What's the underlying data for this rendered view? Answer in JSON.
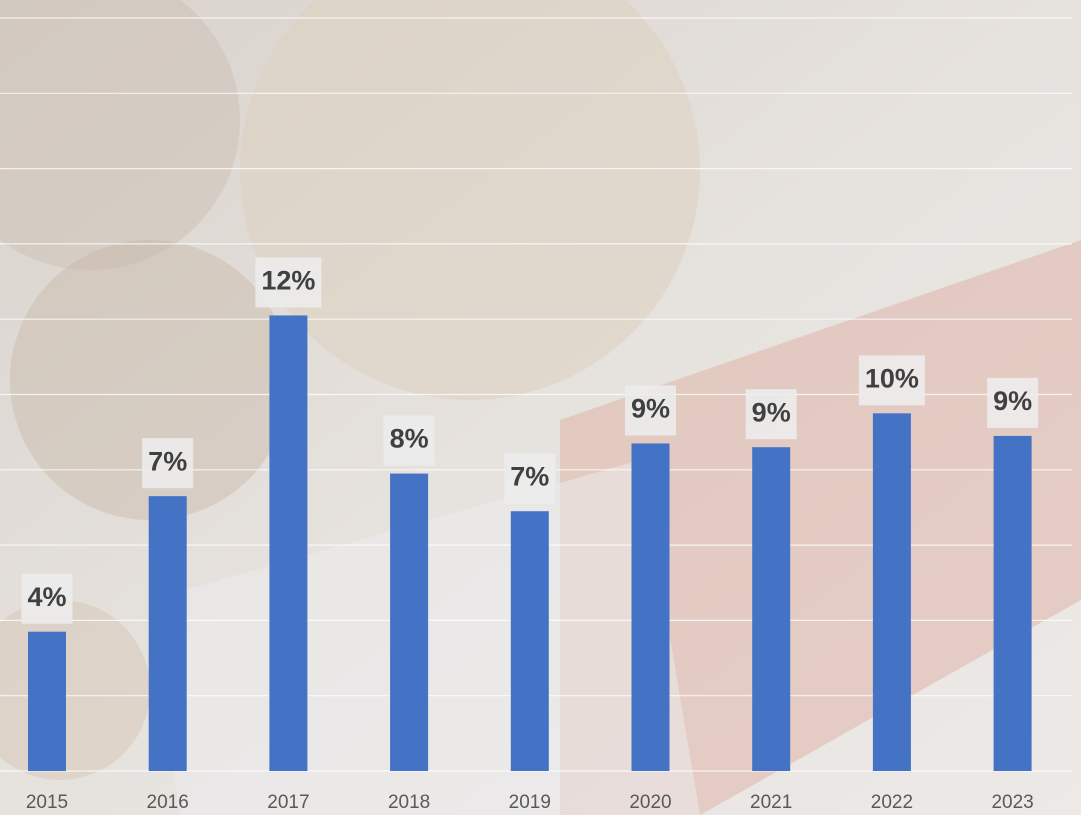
{
  "chart_data": {
    "type": "bar",
    "categories": [
      "2015",
      "2016",
      "2017",
      "2018",
      "2019",
      "2020",
      "2021",
      "2022",
      "2023"
    ],
    "values": [
      3.7,
      7.3,
      12.1,
      7.9,
      6.9,
      8.7,
      8.6,
      9.5,
      8.9
    ],
    "value_labels": [
      "4%",
      "7%",
      "12%",
      "8%",
      "7%",
      "9%",
      "9%",
      "10%",
      "9%"
    ],
    "color": "#4472c4",
    "ylim": [
      0,
      20
    ],
    "yticks": [
      0,
      2,
      4,
      6,
      8,
      10,
      12,
      14,
      16,
      18,
      20
    ],
    "grid": true
  }
}
